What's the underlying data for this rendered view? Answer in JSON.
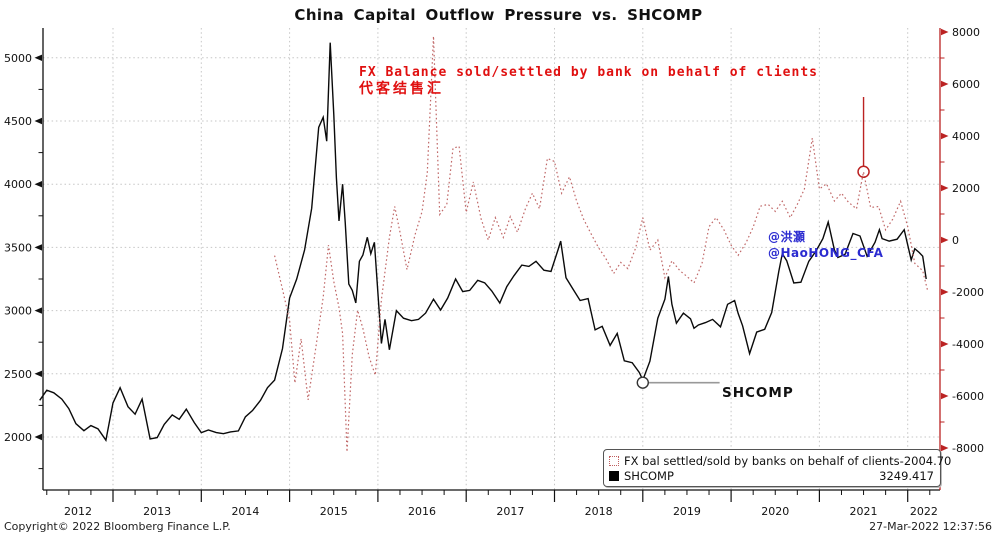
{
  "title": "China Capital Outflow Pressure vs. SHCOMP",
  "annotations": {
    "fx_label_line1": "FX Balance sold/settled by bank on behalf of clients",
    "fx_label_line2": "代客结售汇",
    "handle_line1": "@洪灝",
    "handle_line2": "@HaoHONG_CFA",
    "shcomp_label": "SHCOMP"
  },
  "legend": {
    "rows": [
      {
        "swatch": "dotted-red",
        "label": "FX bal settled/sold by banks on behalf of clients",
        "value": "-2004.70"
      },
      {
        "swatch": "solid-black",
        "label": "SHCOMP",
        "value": "3249.417"
      }
    ]
  },
  "footer": {
    "copyright": "Copyright© 2022 Bloomberg Finance L.P.",
    "timestamp": "27-Mar-2022 12:37:56"
  },
  "colors": {
    "shcomp_line": "#0a0a0a",
    "fx_line": "#c06868",
    "right_axis": "#bb2222",
    "grid": "#c6c6c6",
    "annotation_red": "#e01010",
    "handle_blue": "#2b2bd0"
  },
  "chart_data": {
    "type": "line",
    "title": "China Capital Outflow Pressure vs. SHCOMP",
    "x_axis": {
      "year_labels": [
        "2012",
        "2013",
        "2014",
        "2015",
        "2016",
        "2017",
        "2018",
        "2019",
        "2020",
        "2021",
        "2022"
      ],
      "boundaries": [
        2013,
        2014,
        2015,
        2016,
        2017,
        2018,
        2019,
        2020,
        2021,
        2022
      ],
      "range": [
        2012.17,
        2022.37
      ],
      "minor_step_years": 0.25
    },
    "left_axis": {
      "label_values": [
        2000,
        2500,
        3000,
        3500,
        4000,
        4500,
        5000
      ],
      "minor_values": [
        1750,
        2250,
        2750,
        3250,
        3750,
        4250,
        4750
      ],
      "side": "left"
    },
    "right_axis": {
      "label_values": [
        -8000,
        -6000,
        -4000,
        -2000,
        0,
        2000,
        4000,
        6000,
        8000
      ],
      "minor_values": [
        -7000,
        -5000,
        -3000,
        -1000,
        1000,
        3000,
        5000,
        7000
      ],
      "side": "right"
    },
    "series": [
      {
        "name": "SHCOMP",
        "axis": "left",
        "style": "solid",
        "last_value": 3249.417,
        "points": [
          [
            2012.17,
            2290
          ],
          [
            2012.25,
            2370
          ],
          [
            2012.33,
            2350
          ],
          [
            2012.42,
            2300
          ],
          [
            2012.5,
            2225
          ],
          [
            2012.58,
            2105
          ],
          [
            2012.67,
            2050
          ],
          [
            2012.75,
            2090
          ],
          [
            2012.83,
            2065
          ],
          [
            2012.92,
            1975
          ],
          [
            2013.0,
            2270
          ],
          [
            2013.08,
            2390
          ],
          [
            2013.17,
            2240
          ],
          [
            2013.25,
            2180
          ],
          [
            2013.33,
            2300
          ],
          [
            2013.42,
            1985
          ],
          [
            2013.5,
            1995
          ],
          [
            2013.58,
            2100
          ],
          [
            2013.67,
            2175
          ],
          [
            2013.75,
            2140
          ],
          [
            2013.83,
            2220
          ],
          [
            2013.92,
            2115
          ],
          [
            2014.0,
            2035
          ],
          [
            2014.08,
            2055
          ],
          [
            2014.17,
            2035
          ],
          [
            2014.25,
            2026
          ],
          [
            2014.33,
            2040
          ],
          [
            2014.42,
            2048
          ],
          [
            2014.5,
            2160
          ],
          [
            2014.58,
            2210
          ],
          [
            2014.67,
            2290
          ],
          [
            2014.75,
            2390
          ],
          [
            2014.83,
            2450
          ],
          [
            2014.92,
            2700
          ],
          [
            2015.0,
            3100
          ],
          [
            2015.08,
            3250
          ],
          [
            2015.17,
            3480
          ],
          [
            2015.25,
            3810
          ],
          [
            2015.33,
            4450
          ],
          [
            2015.38,
            4530
          ],
          [
            2015.42,
            4340
          ],
          [
            2015.46,
            5120
          ],
          [
            2015.5,
            4550
          ],
          [
            2015.53,
            4050
          ],
          [
            2015.56,
            3710
          ],
          [
            2015.6,
            4000
          ],
          [
            2015.63,
            3700
          ],
          [
            2015.67,
            3210
          ],
          [
            2015.71,
            3160
          ],
          [
            2015.75,
            3060
          ],
          [
            2015.79,
            3390
          ],
          [
            2015.83,
            3440
          ],
          [
            2015.88,
            3580
          ],
          [
            2015.92,
            3450
          ],
          [
            2015.96,
            3540
          ],
          [
            2016.04,
            2740
          ],
          [
            2016.08,
            2930
          ],
          [
            2016.13,
            2690
          ],
          [
            2016.21,
            3000
          ],
          [
            2016.29,
            2940
          ],
          [
            2016.38,
            2920
          ],
          [
            2016.46,
            2930
          ],
          [
            2016.54,
            2980
          ],
          [
            2016.63,
            3090
          ],
          [
            2016.71,
            3005
          ],
          [
            2016.79,
            3100
          ],
          [
            2016.88,
            3250
          ],
          [
            2016.96,
            3150
          ],
          [
            2017.04,
            3160
          ],
          [
            2017.13,
            3240
          ],
          [
            2017.21,
            3220
          ],
          [
            2017.29,
            3155
          ],
          [
            2017.38,
            3060
          ],
          [
            2017.46,
            3190
          ],
          [
            2017.54,
            3275
          ],
          [
            2017.63,
            3360
          ],
          [
            2017.71,
            3350
          ],
          [
            2017.79,
            3390
          ],
          [
            2017.88,
            3320
          ],
          [
            2017.96,
            3310
          ],
          [
            2018.04,
            3480
          ],
          [
            2018.07,
            3550
          ],
          [
            2018.13,
            3260
          ],
          [
            2018.21,
            3170
          ],
          [
            2018.29,
            3080
          ],
          [
            2018.38,
            3095
          ],
          [
            2018.46,
            2847
          ],
          [
            2018.54,
            2876
          ],
          [
            2018.63,
            2725
          ],
          [
            2018.71,
            2820
          ],
          [
            2018.79,
            2603
          ],
          [
            2018.88,
            2588
          ],
          [
            2018.96,
            2510
          ],
          [
            2019.0,
            2450
          ],
          [
            2019.08,
            2600
          ],
          [
            2019.17,
            2940
          ],
          [
            2019.25,
            3090
          ],
          [
            2019.29,
            3270
          ],
          [
            2019.33,
            3050
          ],
          [
            2019.38,
            2900
          ],
          [
            2019.46,
            2980
          ],
          [
            2019.54,
            2935
          ],
          [
            2019.58,
            2860
          ],
          [
            2019.63,
            2886
          ],
          [
            2019.71,
            2905
          ],
          [
            2019.79,
            2930
          ],
          [
            2019.88,
            2872
          ],
          [
            2019.96,
            3050
          ],
          [
            2020.04,
            3080
          ],
          [
            2020.08,
            2977
          ],
          [
            2020.13,
            2880
          ],
          [
            2020.21,
            2660
          ],
          [
            2020.29,
            2830
          ],
          [
            2020.38,
            2852
          ],
          [
            2020.46,
            2985
          ],
          [
            2020.54,
            3310
          ],
          [
            2020.58,
            3450
          ],
          [
            2020.63,
            3395
          ],
          [
            2020.71,
            3218
          ],
          [
            2020.79,
            3225
          ],
          [
            2020.88,
            3390
          ],
          [
            2020.96,
            3470
          ],
          [
            2021.04,
            3570
          ],
          [
            2021.1,
            3700
          ],
          [
            2021.17,
            3480
          ],
          [
            2021.21,
            3420
          ],
          [
            2021.29,
            3445
          ],
          [
            2021.38,
            3610
          ],
          [
            2021.46,
            3590
          ],
          [
            2021.54,
            3430
          ],
          [
            2021.63,
            3540
          ],
          [
            2021.68,
            3640
          ],
          [
            2021.71,
            3570
          ],
          [
            2021.79,
            3550
          ],
          [
            2021.88,
            3565
          ],
          [
            2021.96,
            3640
          ],
          [
            2022.04,
            3400
          ],
          [
            2022.08,
            3490
          ],
          [
            2022.13,
            3460
          ],
          [
            2022.17,
            3430
          ],
          [
            2022.21,
            3250
          ]
        ]
      },
      {
        "name": "FX bal settled/sold by banks on behalf of clients",
        "axis": "right",
        "style": "dotted",
        "last_value": -2004.7,
        "points": [
          [
            2014.83,
            -600
          ],
          [
            2014.92,
            -1900
          ],
          [
            2015.0,
            -3100
          ],
          [
            2015.06,
            -5500
          ],
          [
            2015.13,
            -3800
          ],
          [
            2015.21,
            -6150
          ],
          [
            2015.29,
            -4300
          ],
          [
            2015.38,
            -2200
          ],
          [
            2015.44,
            -200
          ],
          [
            2015.5,
            -1600
          ],
          [
            2015.56,
            -2600
          ],
          [
            2015.6,
            -3600
          ],
          [
            2015.65,
            -8150
          ],
          [
            2015.71,
            -4400
          ],
          [
            2015.77,
            -2700
          ],
          [
            2015.83,
            -3400
          ],
          [
            2015.9,
            -4500
          ],
          [
            2015.97,
            -5200
          ],
          [
            2016.04,
            -2300
          ],
          [
            2016.13,
            100
          ],
          [
            2016.19,
            1290
          ],
          [
            2016.25,
            300
          ],
          [
            2016.33,
            -1140
          ],
          [
            2016.42,
            200
          ],
          [
            2016.5,
            1100
          ],
          [
            2016.56,
            2600
          ],
          [
            2016.63,
            7840
          ],
          [
            2016.7,
            980
          ],
          [
            2016.78,
            1370
          ],
          [
            2016.85,
            3530
          ],
          [
            2016.92,
            3600
          ],
          [
            2017.0,
            1060
          ],
          [
            2017.08,
            2230
          ],
          [
            2017.17,
            800
          ],
          [
            2017.25,
            0
          ],
          [
            2017.33,
            860
          ],
          [
            2017.42,
            100
          ],
          [
            2017.5,
            900
          ],
          [
            2017.58,
            300
          ],
          [
            2017.67,
            1200
          ],
          [
            2017.75,
            1800
          ],
          [
            2017.83,
            1200
          ],
          [
            2017.92,
            3140
          ],
          [
            2018.0,
            3020
          ],
          [
            2018.08,
            1800
          ],
          [
            2018.17,
            2430
          ],
          [
            2018.25,
            1500
          ],
          [
            2018.33,
            800
          ],
          [
            2018.42,
            200
          ],
          [
            2018.5,
            -300
          ],
          [
            2018.58,
            -700
          ],
          [
            2018.67,
            -1290
          ],
          [
            2018.75,
            -860
          ],
          [
            2018.83,
            -1100
          ],
          [
            2018.92,
            -300
          ],
          [
            2019.0,
            860
          ],
          [
            2019.08,
            -390
          ],
          [
            2019.17,
            0
          ],
          [
            2019.25,
            -1450
          ],
          [
            2019.33,
            -800
          ],
          [
            2019.42,
            -1180
          ],
          [
            2019.5,
            -1400
          ],
          [
            2019.58,
            -1650
          ],
          [
            2019.67,
            -900
          ],
          [
            2019.75,
            510
          ],
          [
            2019.83,
            860
          ],
          [
            2019.92,
            390
          ],
          [
            2020.0,
            -200
          ],
          [
            2020.08,
            -590
          ],
          [
            2020.17,
            -100
          ],
          [
            2020.25,
            500
          ],
          [
            2020.33,
            1300
          ],
          [
            2020.42,
            1370
          ],
          [
            2020.5,
            1100
          ],
          [
            2020.58,
            1490
          ],
          [
            2020.67,
            860
          ],
          [
            2020.75,
            1370
          ],
          [
            2020.83,
            1960
          ],
          [
            2020.92,
            3920
          ],
          [
            2021.0,
            1960
          ],
          [
            2021.08,
            2160
          ],
          [
            2021.17,
            1500
          ],
          [
            2021.25,
            1800
          ],
          [
            2021.33,
            1450
          ],
          [
            2021.42,
            1200
          ],
          [
            2021.5,
            2625
          ],
          [
            2021.58,
            1250
          ],
          [
            2021.67,
            1290
          ],
          [
            2021.75,
            390
          ],
          [
            2021.83,
            800
          ],
          [
            2021.92,
            1490
          ],
          [
            2022.0,
            510
          ],
          [
            2022.08,
            -900
          ],
          [
            2022.17,
            -1180
          ],
          [
            2022.23,
            -2004.7
          ]
        ]
      }
    ],
    "callouts": {
      "shcomp": {
        "t": 2019.0,
        "v": 2430,
        "axis": "left",
        "line_to_t": 2019.87,
        "label": "SHCOMP"
      },
      "fx_spike": {
        "t": 2021.5,
        "v": 2625,
        "axis": "right",
        "line_top_v": 5500
      }
    },
    "legend_position": "bottom-right",
    "grid": true
  }
}
